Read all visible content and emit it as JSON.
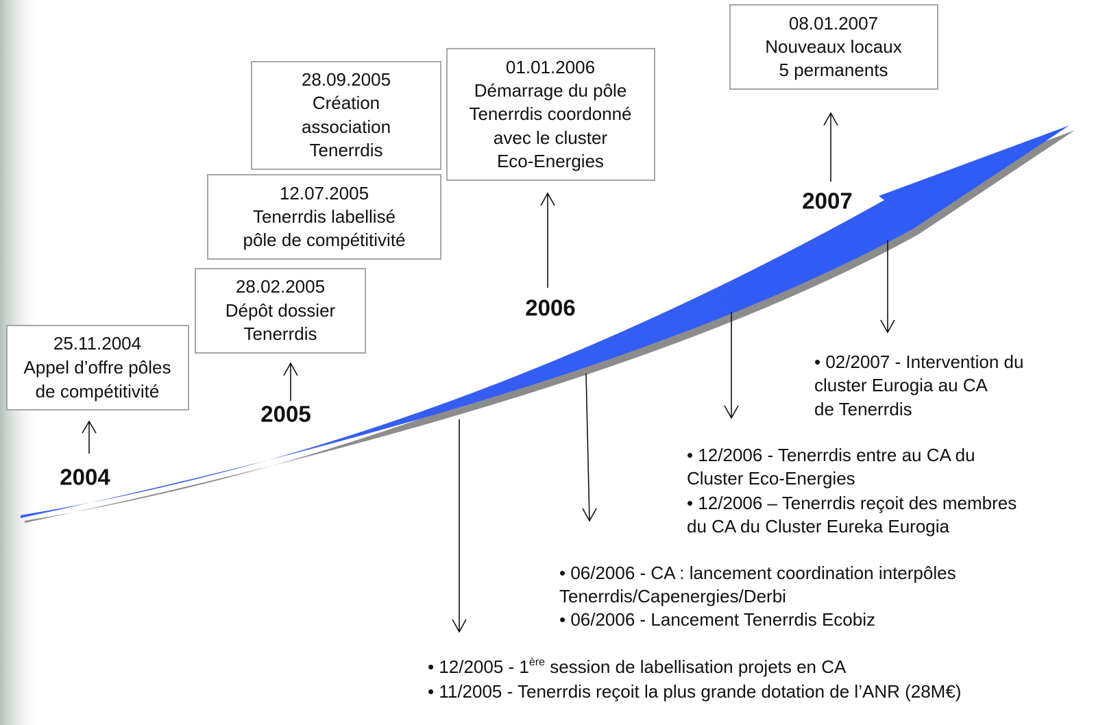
{
  "years": [
    "2004",
    "2005",
    "2006",
    "2007"
  ],
  "boxes": [
    {
      "lines": [
        "25.11.2004",
        "Appel d’offre pôles",
        "de compétitivité"
      ]
    },
    {
      "lines": [
        "28.02.2005",
        "Dépôt dossier",
        "Tenerrdis"
      ]
    },
    {
      "lines": [
        "12.07.2005",
        "Tenerrdis labellisé",
        "pôle de compétitivité"
      ]
    },
    {
      "lines": [
        "28.09.2005",
        "Création",
        "association",
        "Tenerrdis"
      ]
    },
    {
      "lines": [
        "01.01.2006",
        "Démarrage du pôle",
        "Tenerrdis coordonné",
        "avec le cluster",
        "Eco-Energies"
      ]
    },
    {
      "lines": [
        "08.01.2007",
        "Nouveaux locaux",
        "5 permanents"
      ]
    }
  ],
  "notes": [
    {
      "lines": [
        "• 02/2007 - Intervention du",
        "cluster Eurogia au CA",
        "de Tenerrdis"
      ]
    },
    {
      "lines": [
        "• 12/2006 - Tenerrdis entre au CA du",
        "Cluster Eco-Energies",
        "• 12/2006 – Tenerrdis reçoit des membres",
        "du CA du Cluster Eureka Eurogia"
      ]
    },
    {
      "lines": [
        "• 06/2006 - CA : lancement coordination interpôles",
        "Tenerrdis/Capenergies/Derbi",
        "• 06/2006 - Lancement Tenerrdis Ecobiz"
      ]
    },
    {
      "lines": [
        {
          "before": "• 12/2005 - 1",
          "sup": "ère",
          "after": " session de labellisation projets en CA"
        },
        "• 11/2005 - Tenerrdis reçoit la plus grande dotation de l’ANR (28M€)"
      ]
    }
  ]
}
